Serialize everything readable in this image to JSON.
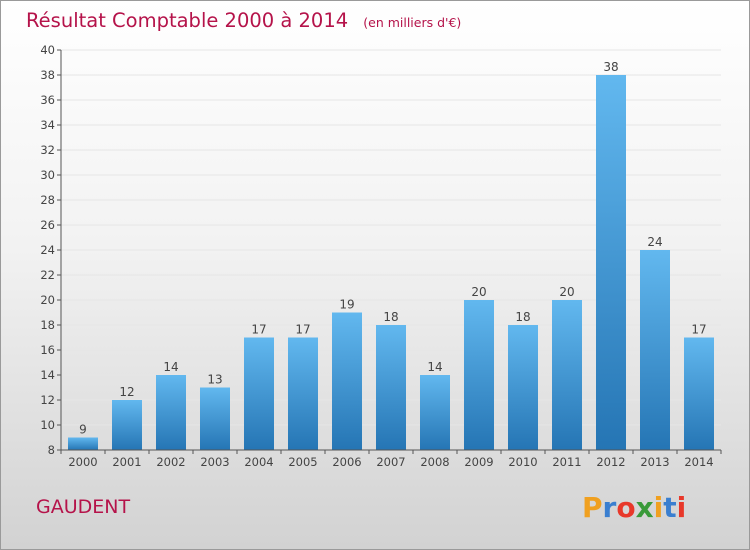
{
  "title": "Résultat Comptable 2000 à 2014",
  "subtitle": "(en milliers d'€)",
  "location": "GAUDENT",
  "brand": {
    "name": "Proxiti",
    "letter_colors": [
      "#f0a020",
      "#3a7fd0",
      "#e8382a",
      "#3a9a3a",
      "#f0a020",
      "#3a7fd0",
      "#e8382a"
    ]
  },
  "colors": {
    "title": "#b5134a",
    "bar_top": "#62b8ef",
    "bar_bottom": "#2575b4"
  },
  "chart_data": {
    "type": "bar",
    "categories": [
      "2000",
      "2001",
      "2002",
      "2003",
      "2004",
      "2005",
      "2006",
      "2007",
      "2008",
      "2009",
      "2010",
      "2011",
      "2012",
      "2013",
      "2014"
    ],
    "values": [
      9,
      12,
      14,
      13,
      17,
      17,
      19,
      18,
      14,
      20,
      18,
      20,
      38,
      24,
      17
    ],
    "ylim": [
      8,
      40
    ],
    "yticks": [
      8,
      10,
      12,
      14,
      16,
      18,
      20,
      22,
      24,
      26,
      28,
      30,
      32,
      34,
      36,
      38,
      40
    ],
    "xlabel": "",
    "ylabel": "",
    "grid": true,
    "data_labels": true
  }
}
